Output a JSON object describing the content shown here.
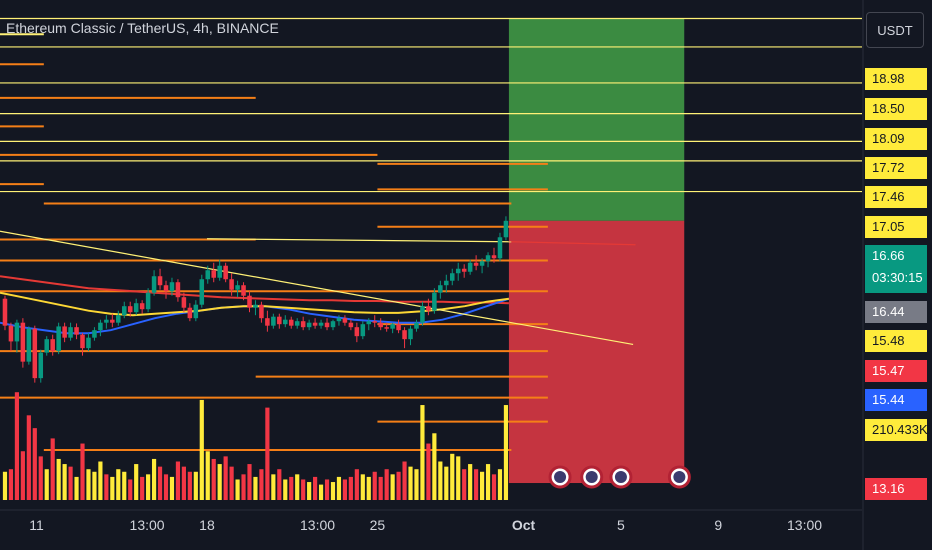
{
  "header": {
    "title": "Ethereum Classic / TetherUS, 4h, BINANCE",
    "currency_label": "USDT"
  },
  "colors": {
    "background": "#131722",
    "up": "#089981",
    "down": "#f23645",
    "volume_up": "#ffeb3b",
    "volume_down": "#f23645",
    "level_yellow": "#fff176",
    "level_orange": "#f57f17",
    "ma_red": "#e53935",
    "ma_blue": "#2962ff",
    "ma_yellow": "#fdd835",
    "profit_zone": "#43a047",
    "loss_zone": "#e53945"
  },
  "price_axis": {
    "labels": [
      {
        "text": "18.98",
        "style": "yellow"
      },
      {
        "text": "18.50",
        "style": "yellow"
      },
      {
        "text": "18.09",
        "style": "yellow"
      },
      {
        "text": "17.72",
        "style": "yellow"
      },
      {
        "text": "17.46",
        "style": "yellow"
      },
      {
        "text": "17.05",
        "style": "yellow"
      },
      {
        "text": "16.44",
        "style": "gray"
      },
      {
        "text": "15.48",
        "style": "yellow"
      },
      {
        "text": "15.47",
        "style": "red"
      },
      {
        "text": "15.44",
        "style": "blue"
      },
      {
        "text": "210.433K",
        "style": "yellow"
      },
      {
        "text": "13.16",
        "style": "red"
      }
    ],
    "live_price": "16.66",
    "countdown": "03:30:15"
  },
  "time_axis": {
    "labels": [
      {
        "text": "11",
        "bold": false
      },
      {
        "text": "13:00",
        "bold": false
      },
      {
        "text": "18",
        "bold": false
      },
      {
        "text": "13:00",
        "bold": false
      },
      {
        "text": "25",
        "bold": false
      },
      {
        "text": "Oct",
        "bold": true
      },
      {
        "text": "5",
        "bold": false
      },
      {
        "text": "9",
        "bold": false
      },
      {
        "text": "13:00",
        "bold": false
      }
    ]
  },
  "chart_data": {
    "type": "candlestick",
    "symbol": "ETCUSDT",
    "interval": "4h",
    "exchange": "BINANCE",
    "ylim": [
      12.8,
      19.5
    ],
    "x_range_days": [
      9.5,
      44.9
    ],
    "x_ticks": [
      11,
      15.54,
      18,
      22.54,
      25,
      31,
      35,
      39,
      42.54
    ],
    "last_price": 16.66,
    "ohlc": [
      [
        15.62,
        15.66,
        15.2,
        15.26
      ],
      [
        15.26,
        15.3,
        14.92,
        15.05
      ],
      [
        15.05,
        15.34,
        14.9,
        15.3
      ],
      [
        15.3,
        15.36,
        14.7,
        14.78
      ],
      [
        14.78,
        15.25,
        14.74,
        15.22
      ],
      [
        15.22,
        15.26,
        14.5,
        14.56
      ],
      [
        14.56,
        14.94,
        14.5,
        14.9
      ],
      [
        14.9,
        15.12,
        14.86,
        15.08
      ],
      [
        15.08,
        15.14,
        14.86,
        14.92
      ],
      [
        14.92,
        15.3,
        14.88,
        15.25
      ],
      [
        15.25,
        15.3,
        15.04,
        15.1
      ],
      [
        15.1,
        15.3,
        15.06,
        15.24
      ],
      [
        15.24,
        15.29,
        15.08,
        15.14
      ],
      [
        15.14,
        15.16,
        14.86,
        14.96
      ],
      [
        14.96,
        15.16,
        14.92,
        15.1
      ],
      [
        15.1,
        15.24,
        15.06,
        15.2
      ],
      [
        15.2,
        15.34,
        15.12,
        15.3
      ],
      [
        15.3,
        15.4,
        15.22,
        15.34
      ],
      [
        15.34,
        15.42,
        15.24,
        15.3
      ],
      [
        15.3,
        15.46,
        15.26,
        15.4
      ],
      [
        15.4,
        15.58,
        15.36,
        15.52
      ],
      [
        15.52,
        15.58,
        15.38,
        15.44
      ],
      [
        15.44,
        15.62,
        15.4,
        15.56
      ],
      [
        15.56,
        15.6,
        15.42,
        15.48
      ],
      [
        15.48,
        15.76,
        15.44,
        15.7
      ],
      [
        15.7,
        16.0,
        15.66,
        15.92
      ],
      [
        15.92,
        16.02,
        15.74,
        15.8
      ],
      [
        15.8,
        15.86,
        15.62,
        15.72
      ],
      [
        15.72,
        15.9,
        15.66,
        15.84
      ],
      [
        15.84,
        15.88,
        15.58,
        15.64
      ],
      [
        15.64,
        15.7,
        15.44,
        15.5
      ],
      [
        15.5,
        15.56,
        15.32,
        15.36
      ],
      [
        15.36,
        15.6,
        15.32,
        15.54
      ],
      [
        15.54,
        15.94,
        15.5,
        15.88
      ],
      [
        15.88,
        16.06,
        15.82,
        16.0
      ],
      [
        16.0,
        16.1,
        15.84,
        15.9
      ],
      [
        15.9,
        16.14,
        15.86,
        16.06
      ],
      [
        16.06,
        16.1,
        15.84,
        15.88
      ],
      [
        15.88,
        15.96,
        15.66,
        15.74
      ],
      [
        15.74,
        15.86,
        15.64,
        15.8
      ],
      [
        15.8,
        15.84,
        15.6,
        15.66
      ],
      [
        15.66,
        15.72,
        15.44,
        15.5
      ],
      [
        15.5,
        15.6,
        15.4,
        15.54
      ],
      [
        15.54,
        15.58,
        15.3,
        15.36
      ],
      [
        15.36,
        15.46,
        15.18,
        15.26
      ],
      [
        15.26,
        15.42,
        15.22,
        15.38
      ],
      [
        15.38,
        15.42,
        15.22,
        15.28
      ],
      [
        15.28,
        15.4,
        15.24,
        15.34
      ],
      [
        15.34,
        15.38,
        15.22,
        15.26
      ],
      [
        15.26,
        15.36,
        15.22,
        15.32
      ],
      [
        15.32,
        15.38,
        15.2,
        15.24
      ],
      [
        15.24,
        15.34,
        15.2,
        15.3
      ],
      [
        15.3,
        15.36,
        15.22,
        15.26
      ],
      [
        15.26,
        15.34,
        15.22,
        15.3
      ],
      [
        15.3,
        15.36,
        15.2,
        15.24
      ],
      [
        15.24,
        15.34,
        15.2,
        15.32
      ],
      [
        15.32,
        15.4,
        15.26,
        15.36
      ],
      [
        15.36,
        15.4,
        15.26,
        15.3
      ],
      [
        15.3,
        15.34,
        15.2,
        15.24
      ],
      [
        15.24,
        15.3,
        15.04,
        15.12
      ],
      [
        15.12,
        15.32,
        15.08,
        15.28
      ],
      [
        15.28,
        15.36,
        15.2,
        15.32
      ],
      [
        15.32,
        15.4,
        15.24,
        15.3
      ],
      [
        15.3,
        15.36,
        15.2,
        15.24
      ],
      [
        15.24,
        15.3,
        15.18,
        15.22
      ],
      [
        15.22,
        15.3,
        15.16,
        15.28
      ],
      [
        15.28,
        15.34,
        15.16,
        15.2
      ],
      [
        15.2,
        15.24,
        14.96,
        15.08
      ],
      [
        15.08,
        15.26,
        15.0,
        15.22
      ],
      [
        15.22,
        15.34,
        15.18,
        15.3
      ],
      [
        15.3,
        15.58,
        15.26,
        15.52
      ],
      [
        15.52,
        15.62,
        15.4,
        15.46
      ],
      [
        15.46,
        15.76,
        15.42,
        15.7
      ],
      [
        15.7,
        15.86,
        15.62,
        15.8
      ],
      [
        15.8,
        15.94,
        15.7,
        15.86
      ],
      [
        15.86,
        16.02,
        15.8,
        15.96
      ],
      [
        15.96,
        16.1,
        15.86,
        16.02
      ],
      [
        16.02,
        16.08,
        15.9,
        15.98
      ],
      [
        15.98,
        16.14,
        15.94,
        16.1
      ],
      [
        16.1,
        16.2,
        16.0,
        16.06
      ],
      [
        16.06,
        16.16,
        15.96,
        16.12
      ],
      [
        16.12,
        16.24,
        16.04,
        16.2
      ],
      [
        16.2,
        16.3,
        16.1,
        16.16
      ],
      [
        16.16,
        16.5,
        16.12,
        16.44
      ],
      [
        16.44,
        16.72,
        16.4,
        16.66
      ]
    ],
    "volume": [
      {
        "v": 55,
        "up": true
      },
      {
        "v": 60,
        "up": false
      },
      {
        "v": 210,
        "up": false
      },
      {
        "v": 95,
        "up": false
      },
      {
        "v": 165,
        "up": false
      },
      {
        "v": 140,
        "up": false
      },
      {
        "v": 85,
        "up": false
      },
      {
        "v": 60,
        "up": true
      },
      {
        "v": 120,
        "up": false
      },
      {
        "v": 80,
        "up": true
      },
      {
        "v": 70,
        "up": true
      },
      {
        "v": 65,
        "up": false
      },
      {
        "v": 45,
        "up": true
      },
      {
        "v": 110,
        "up": false
      },
      {
        "v": 60,
        "up": true
      },
      {
        "v": 55,
        "up": true
      },
      {
        "v": 75,
        "up": true
      },
      {
        "v": 50,
        "up": false
      },
      {
        "v": 45,
        "up": true
      },
      {
        "v": 60,
        "up": true
      },
      {
        "v": 55,
        "up": true
      },
      {
        "v": 40,
        "up": false
      },
      {
        "v": 70,
        "up": true
      },
      {
        "v": 45,
        "up": false
      },
      {
        "v": 50,
        "up": true
      },
      {
        "v": 80,
        "up": true
      },
      {
        "v": 65,
        "up": false
      },
      {
        "v": 50,
        "up": false
      },
      {
        "v": 45,
        "up": true
      },
      {
        "v": 75,
        "up": false
      },
      {
        "v": 65,
        "up": false
      },
      {
        "v": 55,
        "up": false
      },
      {
        "v": 55,
        "up": true
      },
      {
        "v": 195,
        "up": true
      },
      {
        "v": 95,
        "up": true
      },
      {
        "v": 80,
        "up": false
      },
      {
        "v": 70,
        "up": true
      },
      {
        "v": 85,
        "up": false
      },
      {
        "v": 65,
        "up": false
      },
      {
        "v": 40,
        "up": true
      },
      {
        "v": 50,
        "up": false
      },
      {
        "v": 70,
        "up": false
      },
      {
        "v": 45,
        "up": true
      },
      {
        "v": 60,
        "up": false
      },
      {
        "v": 180,
        "up": false
      },
      {
        "v": 50,
        "up": true
      },
      {
        "v": 60,
        "up": false
      },
      {
        "v": 40,
        "up": true
      },
      {
        "v": 45,
        "up": false
      },
      {
        "v": 50,
        "up": true
      },
      {
        "v": 40,
        "up": false
      },
      {
        "v": 35,
        "up": true
      },
      {
        "v": 45,
        "up": false
      },
      {
        "v": 30,
        "up": true
      },
      {
        "v": 40,
        "up": false
      },
      {
        "v": 35,
        "up": true
      },
      {
        "v": 45,
        "up": true
      },
      {
        "v": 40,
        "up": false
      },
      {
        "v": 45,
        "up": false
      },
      {
        "v": 60,
        "up": false
      },
      {
        "v": 50,
        "up": true
      },
      {
        "v": 45,
        "up": true
      },
      {
        "v": 55,
        "up": false
      },
      {
        "v": 45,
        "up": false
      },
      {
        "v": 60,
        "up": false
      },
      {
        "v": 50,
        "up": true
      },
      {
        "v": 55,
        "up": false
      },
      {
        "v": 75,
        "up": false
      },
      {
        "v": 65,
        "up": true
      },
      {
        "v": 60,
        "up": true
      },
      {
        "v": 185,
        "up": true
      },
      {
        "v": 110,
        "up": false
      },
      {
        "v": 130,
        "up": true
      },
      {
        "v": 75,
        "up": true
      },
      {
        "v": 65,
        "up": true
      },
      {
        "v": 90,
        "up": true
      },
      {
        "v": 85,
        "up": true
      },
      {
        "v": 60,
        "up": false
      },
      {
        "v": 70,
        "up": true
      },
      {
        "v": 60,
        "up": false
      },
      {
        "v": 55,
        "up": true
      },
      {
        "v": 70,
        "up": true
      },
      {
        "v": 50,
        "up": false
      },
      {
        "v": 60,
        "up": true
      },
      {
        "v": 185,
        "up": true
      }
    ],
    "volume_max": 210.433,
    "volume_max_label": "210.433K",
    "moving_averages": [
      {
        "color": "red",
        "values": [
          15.92,
          15.88,
          15.84,
          15.8,
          15.76,
          15.74,
          15.72,
          15.7,
          15.68,
          15.66,
          15.64,
          15.63,
          15.62,
          15.61,
          15.6,
          15.6,
          15.59,
          15.59,
          15.58,
          15.58,
          15.58,
          15.57,
          15.57,
          15.56
        ]
      },
      {
        "color": "blue",
        "values": [
          15.3,
          15.24,
          15.2,
          15.16,
          15.16,
          15.2,
          15.28,
          15.36,
          15.42,
          15.46,
          15.5,
          15.52,
          15.52,
          15.48,
          15.42,
          15.38,
          15.34,
          15.32,
          15.3,
          15.3,
          15.34,
          15.42,
          15.52,
          15.62
        ]
      },
      {
        "color": "yellow",
        "values": [
          15.7,
          15.64,
          15.58,
          15.52,
          15.46,
          15.42,
          15.4,
          15.42,
          15.44,
          15.46,
          15.5,
          15.52,
          15.52,
          15.5,
          15.48,
          15.46,
          15.44,
          15.43,
          15.43,
          15.45,
          15.48,
          15.52,
          15.58,
          15.62
        ]
      }
    ],
    "trendlines": [
      {
        "x0": 9.5,
        "y0": 16.52,
        "x1": 35.5,
        "y1": 15.01,
        "color": "yellow"
      },
      {
        "x0": 18.0,
        "y0": 16.42,
        "x1": 30.5,
        "y1": 16.38,
        "color": "yellow"
      },
      {
        "x0": 30.5,
        "y0": 16.38,
        "x1": 35.6,
        "y1": 16.34,
        "color": "red"
      }
    ],
    "position": {
      "entry": 16.66,
      "target": 19.36,
      "stop": 13.16,
      "x_start": 30.4,
      "x_end": 37.6
    },
    "levels_full": [
      {
        "price": 19.36,
        "color": "yellow"
      },
      {
        "price": 18.98,
        "color": "yellow"
      },
      {
        "price": 18.5,
        "color": "yellow"
      },
      {
        "price": 18.09,
        "color": "yellow"
      },
      {
        "price": 17.72,
        "color": "yellow"
      },
      {
        "price": 17.46,
        "color": "yellow"
      },
      {
        "price": 17.05,
        "color": "yellow"
      }
    ],
    "levels_partial": [
      {
        "price": 19.15,
        "x0": 9.5,
        "x1": 11.3,
        "color": "yellow"
      },
      {
        "price": 18.75,
        "x0": 9.5,
        "x1": 11.3,
        "color": "orange"
      },
      {
        "price": 18.3,
        "x0": 9.5,
        "x1": 20.0,
        "color": "orange"
      },
      {
        "price": 17.92,
        "x0": 9.5,
        "x1": 11.3,
        "color": "orange"
      },
      {
        "price": 17.54,
        "x0": 9.5,
        "x1": 25.0,
        "color": "orange"
      },
      {
        "price": 17.42,
        "x0": 25.0,
        "x1": 32.0,
        "color": "orange"
      },
      {
        "price": 17.15,
        "x0": 9.5,
        "x1": 11.3,
        "color": "orange"
      },
      {
        "price": 17.08,
        "x0": 25.0,
        "x1": 32.0,
        "color": "orange"
      },
      {
        "price": 16.89,
        "x0": 11.3,
        "x1": 30.5,
        "color": "orange"
      },
      {
        "price": 16.58,
        "x0": 25.0,
        "x1": 32.0,
        "color": "orange"
      },
      {
        "price": 16.41,
        "x0": 9.5,
        "x1": 20.0,
        "color": "orange"
      },
      {
        "price": 16.13,
        "x0": 9.5,
        "x1": 32.0,
        "color": "orange"
      },
      {
        "price": 15.72,
        "x0": 9.5,
        "x1": 32.0,
        "color": "orange"
      },
      {
        "price": 15.28,
        "x0": 25.0,
        "x1": 32.0,
        "color": "orange"
      },
      {
        "price": 14.92,
        "x0": 9.5,
        "x1": 32.0,
        "color": "orange"
      },
      {
        "price": 14.58,
        "x0": 20.0,
        "x1": 32.0,
        "color": "orange"
      },
      {
        "price": 14.3,
        "x0": 9.5,
        "x1": 32.0,
        "color": "orange"
      },
      {
        "price": 13.98,
        "x0": 25.0,
        "x1": 32.0,
        "color": "orange"
      },
      {
        "price": 13.6,
        "x0": 11.3,
        "x1": 30.5,
        "color": "orange"
      }
    ],
    "events": [
      32.5,
      33.8,
      35.0,
      37.4
    ]
  }
}
